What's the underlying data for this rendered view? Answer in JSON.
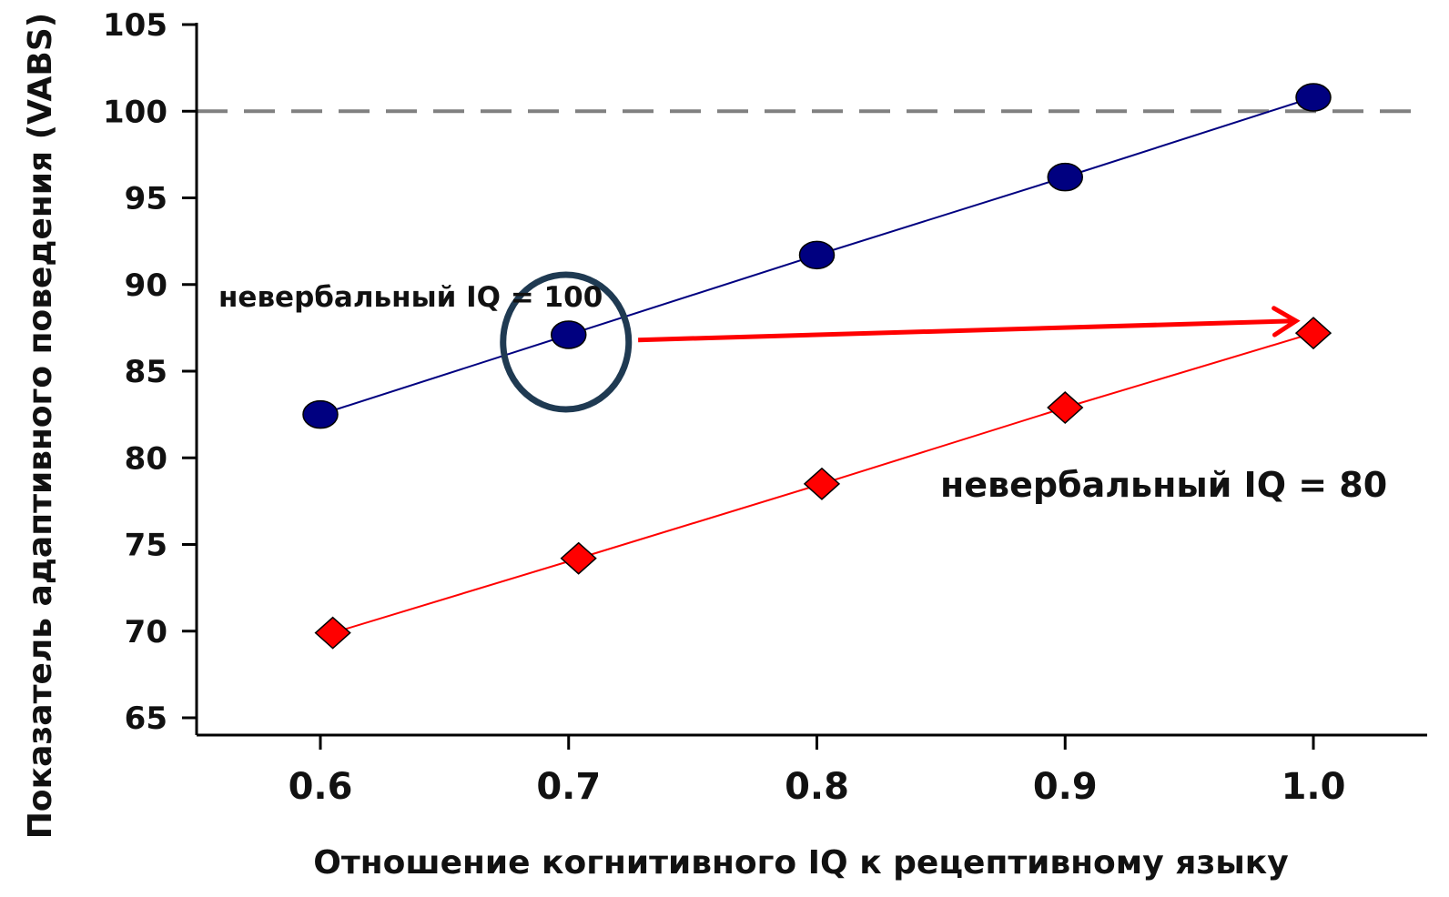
{
  "chart_data": {
    "type": "line",
    "xlabel": "Отношение когнитивного IQ к рецептивному языку",
    "ylabel": "Показатель адаптивного поведения (VABS)",
    "x_ticks": [
      "0.6",
      "0.7",
      "0.8",
      "0.9",
      "1.0"
    ],
    "y_ticks": [
      "65",
      "70",
      "75",
      "80",
      "85",
      "90",
      "95",
      "100",
      "105"
    ],
    "xlim": [
      0.55,
      1.045
    ],
    "ylim": [
      64,
      105
    ],
    "grid": false,
    "reference_line": {
      "y": 100,
      "style": "dashed",
      "color": "#808080"
    },
    "series": [
      {
        "name": "невербальный IQ = 100",
        "marker": "circle",
        "color": "#000080",
        "points": [
          {
            "x": 0.6,
            "y": 82.5
          },
          {
            "x": 0.7,
            "y": 87.1
          },
          {
            "x": 0.8,
            "y": 91.7
          },
          {
            "x": 0.9,
            "y": 96.2
          },
          {
            "x": 1.0,
            "y": 100.8
          }
        ]
      },
      {
        "name": "невербальный IQ = 80",
        "marker": "diamond",
        "color": "#ff0000",
        "points": [
          {
            "x": 0.605,
            "y": 69.9
          },
          {
            "x": 0.704,
            "y": 74.2
          },
          {
            "x": 0.802,
            "y": 78.5
          },
          {
            "x": 0.9,
            "y": 82.9
          },
          {
            "x": 1.0,
            "y": 87.2
          }
        ]
      }
    ],
    "annotations": {
      "highlight": {
        "x": 0.7,
        "y": 87.1,
        "color": "#1f3a52"
      },
      "arrow": {
        "from": {
          "x": 0.728,
          "y": 86.8
        },
        "to": {
          "x": 0.993,
          "y": 87.9
        },
        "color": "#ff0000"
      }
    }
  }
}
